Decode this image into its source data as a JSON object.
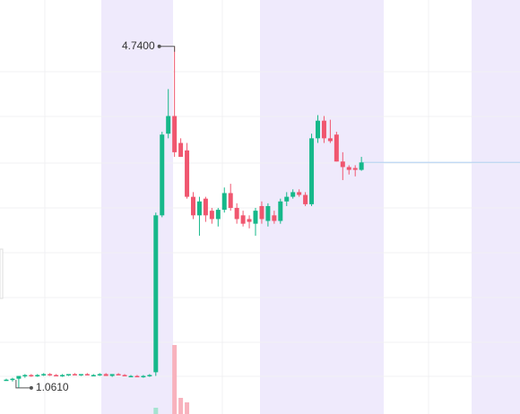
{
  "chart_data": {
    "type": "candlestick",
    "up_color": "#16b88a",
    "down_color": "#f0566f",
    "volume_up_color": "#a5e3d0",
    "volume_down_color": "#f8b2bd",
    "last_price_color": "#bcd6f3",
    "ylim": [
      0.78,
      5.24
    ],
    "open": [
      1.15,
      1.15,
      1.16,
      1.19,
      1.2,
      1.19,
      1.2,
      1.21,
      1.2,
      1.19,
      1.2,
      1.21,
      1.2,
      1.21,
      1.2,
      1.2,
      1.21,
      1.19,
      1.21,
      1.2,
      1.19,
      1.19,
      1.18,
      1.19,
      1.23,
      2.92,
      3.8,
      3.99,
      3.7,
      3.62,
      3.12,
      2.92,
      3.1,
      2.97,
      2.88,
      2.98,
      3.16,
      3.0,
      2.92,
      2.88,
      2.83,
      3.02,
      2.86,
      2.92,
      2.86,
      3.07,
      3.12,
      3.17,
      3.14,
      3.04,
      3.75,
      3.94,
      3.75,
      3.79,
      3.5,
      3.44,
      3.43,
      3.41
    ],
    "high": [
      1.16,
      1.17,
      1.19,
      1.21,
      1.21,
      1.21,
      1.22,
      1.22,
      1.21,
      1.21,
      1.21,
      1.22,
      1.21,
      1.22,
      1.21,
      1.22,
      1.22,
      1.21,
      1.22,
      1.21,
      1.2,
      1.2,
      1.2,
      1.21,
      2.95,
      3.82,
      4.28,
      4.74,
      3.75,
      3.7,
      3.17,
      3.12,
      3.12,
      3.0,
      3.0,
      3.22,
      3.26,
      3.05,
      2.97,
      2.92,
      3.0,
      3.07,
      3.05,
      2.97,
      3.1,
      3.17,
      3.2,
      3.2,
      3.17,
      3.8,
      4.0,
      3.99,
      3.95,
      3.82,
      3.6,
      3.46,
      3.46,
      3.55
    ],
    "low": [
      1.14,
      1.13,
      1.061,
      1.17,
      1.18,
      1.18,
      1.19,
      1.19,
      1.19,
      1.18,
      1.19,
      1.2,
      1.19,
      1.2,
      1.19,
      1.19,
      1.19,
      1.18,
      1.2,
      1.19,
      1.18,
      1.18,
      1.17,
      1.18,
      1.19,
      2.9,
      3.75,
      3.55,
      3.55,
      3.1,
      2.88,
      2.7,
      2.85,
      2.83,
      2.8,
      2.95,
      2.97,
      2.83,
      2.8,
      2.78,
      2.7,
      2.83,
      2.8,
      2.83,
      2.83,
      3.02,
      3.1,
      3.12,
      3.02,
      3.02,
      3.7,
      3.7,
      3.7,
      3.5,
      3.3,
      3.36,
      3.34,
      3.4
    ],
    "close": [
      1.15,
      1.16,
      1.19,
      1.2,
      1.19,
      1.2,
      1.21,
      1.2,
      1.19,
      1.2,
      1.21,
      1.2,
      1.21,
      1.2,
      1.2,
      1.21,
      1.19,
      1.21,
      1.2,
      1.19,
      1.19,
      1.18,
      1.19,
      1.2,
      2.92,
      3.79,
      3.99,
      3.6,
      3.55,
      3.12,
      2.92,
      3.07,
      2.92,
      2.88,
      2.98,
      3.16,
      3.0,
      2.88,
      2.83,
      2.85,
      2.97,
      2.88,
      3.02,
      2.86,
      3.07,
      3.12,
      3.17,
      3.14,
      3.04,
      3.75,
      3.94,
      3.75,
      3.72,
      3.5,
      3.44,
      3.41,
      3.41,
      3.49
    ],
    "volume": [
      0,
      0,
      0,
      0,
      0,
      0,
      0,
      0,
      0,
      0,
      0,
      0,
      0,
      0,
      0,
      0,
      0,
      0,
      0,
      0,
      0,
      0,
      0,
      0,
      7,
      0,
      0,
      77,
      18,
      13,
      0,
      0,
      0,
      0,
      0,
      0,
      0,
      0,
      0,
      0,
      0,
      0,
      0,
      0,
      0,
      0,
      0,
      0,
      0,
      0,
      0,
      0,
      0,
      0,
      0,
      0,
      0,
      0
    ],
    "annotations": [
      {
        "value": 4.74,
        "label": "4.7400"
      },
      {
        "value": 1.061,
        "label": "1.0610"
      }
    ]
  }
}
